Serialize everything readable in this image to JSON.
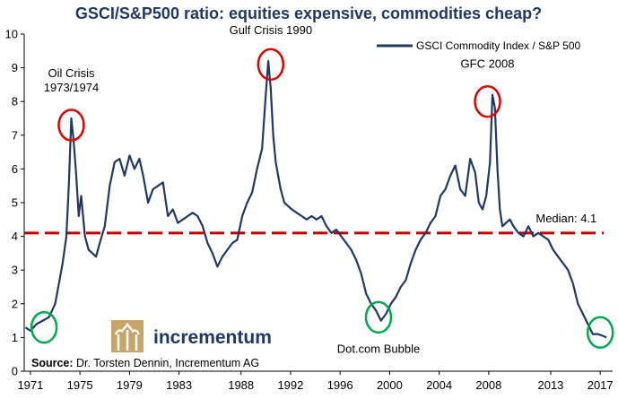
{
  "chart_data": {
    "type": "line",
    "title": "GSCI/S&P500 ratio: equities expensive, commodities cheap?",
    "xlabel": "",
    "ylabel": "",
    "xlim": [
      1970.5,
      2018.0
    ],
    "ylim": [
      0,
      10
    ],
    "y_ticks": [
      0,
      1,
      2,
      3,
      4,
      5,
      6,
      7,
      8,
      9,
      10
    ],
    "x_ticks": [
      1971,
      1975,
      1979,
      1983,
      1988,
      1992,
      1996,
      2000,
      2004,
      2008,
      2013,
      2017
    ],
    "grid": false,
    "legend_position": "top-right",
    "series": [
      {
        "name": "GSCI Commodity Index / S&P 500",
        "color": "#1f3864",
        "x": [
          1970.6,
          1971.0,
          1971.5,
          1972.0,
          1972.5,
          1973.0,
          1973.3,
          1973.6,
          1973.9,
          1974.1,
          1974.3,
          1974.5,
          1974.7,
          1974.9,
          1975.1,
          1975.4,
          1975.7,
          1976.0,
          1976.3,
          1976.6,
          1977.0,
          1977.4,
          1977.8,
          1978.2,
          1978.6,
          1979.0,
          1979.4,
          1979.8,
          1980.1,
          1980.5,
          1980.9,
          1981.3,
          1981.7,
          1982.1,
          1982.5,
          1982.9,
          1983.3,
          1983.7,
          1984.1,
          1984.5,
          1984.9,
          1985.3,
          1985.7,
          1986.1,
          1986.5,
          1986.9,
          1987.3,
          1987.7,
          1988.1,
          1988.5,
          1988.9,
          1989.3,
          1989.7,
          1990.0,
          1990.2,
          1990.4,
          1990.6,
          1990.8,
          1991.0,
          1991.2,
          1991.5,
          1991.8,
          1992.1,
          1992.5,
          1992.9,
          1993.3,
          1993.7,
          1994.1,
          1994.5,
          1994.9,
          1995.3,
          1995.7,
          1996.1,
          1996.5,
          1996.9,
          1997.3,
          1997.7,
          1998.1,
          1998.5,
          1998.9,
          1999.3,
          1999.7,
          2000.1,
          2000.5,
          2000.9,
          2001.3,
          2001.7,
          2002.1,
          2002.5,
          2002.9,
          2003.3,
          2003.7,
          2004.1,
          2004.5,
          2004.9,
          2005.3,
          2005.7,
          2006.1,
          2006.5,
          2006.9,
          2007.2,
          2007.5,
          2007.8,
          2008.1,
          2008.3,
          2008.5,
          2008.7,
          2008.9,
          2009.1,
          2009.4,
          2009.7,
          2010.0,
          2010.4,
          2010.8,
          2011.2,
          2011.6,
          2012.0,
          2012.4,
          2012.8,
          2013.2,
          2013.6,
          2014.0,
          2014.4,
          2014.8,
          2015.2,
          2015.6,
          2016.0,
          2016.4,
          2016.8,
          2017.2,
          2017.5
        ],
        "y": [
          1.3,
          1.2,
          1.4,
          1.5,
          1.6,
          2.0,
          2.6,
          3.2,
          4.0,
          5.5,
          7.5,
          6.8,
          5.8,
          4.6,
          5.2,
          4.0,
          3.6,
          3.5,
          3.4,
          3.8,
          4.3,
          5.5,
          6.2,
          6.3,
          5.8,
          6.4,
          6.0,
          6.3,
          5.8,
          5.0,
          5.4,
          5.5,
          5.6,
          4.6,
          4.8,
          4.4,
          4.5,
          4.6,
          4.7,
          4.6,
          4.3,
          3.8,
          3.5,
          3.1,
          3.4,
          3.6,
          3.8,
          3.9,
          4.6,
          5.0,
          5.3,
          6.0,
          6.6,
          8.2,
          9.2,
          8.4,
          7.0,
          6.2,
          5.8,
          5.4,
          5.0,
          4.9,
          4.8,
          4.7,
          4.6,
          4.5,
          4.6,
          4.5,
          4.6,
          4.3,
          4.1,
          4.2,
          4.0,
          3.8,
          3.6,
          3.3,
          2.9,
          2.3,
          2.0,
          1.8,
          1.5,
          1.7,
          2.0,
          2.2,
          2.5,
          2.7,
          3.2,
          3.6,
          3.9,
          4.1,
          4.4,
          4.6,
          5.2,
          5.4,
          5.8,
          6.1,
          5.4,
          5.2,
          6.3,
          5.9,
          5.0,
          4.8,
          5.2,
          6.2,
          8.2,
          7.8,
          6.0,
          4.8,
          4.3,
          4.4,
          4.5,
          4.3,
          4.1,
          4.0,
          4.3,
          4.0,
          4.1,
          4.0,
          3.9,
          3.6,
          3.4,
          3.2,
          3.0,
          2.6,
          2.0,
          1.7,
          1.4,
          1.1,
          1.1,
          1.05,
          1.0
        ],
        "line_width": 2.2
      }
    ],
    "median": {
      "value": 4.1,
      "label": "Median: 4.1",
      "color": "#c00000"
    },
    "annotations": [
      {
        "text": "Oil Crisis",
        "text2": "1973/1974",
        "x": 1974.3,
        "y": 7.5
      },
      {
        "text": "Gulf Crisis 1990",
        "x": 1990.4,
        "y": 9.2
      },
      {
        "text": "GFC 2008",
        "x": 2007.9,
        "y": 8.2
      },
      {
        "text": "Dot.com Bubble",
        "x": 1999.1,
        "y": 1.55
      }
    ],
    "circles": [
      {
        "x": 1974.3,
        "y": 7.3,
        "color": "#e00000"
      },
      {
        "x": 1990.4,
        "y": 9.1,
        "color": "#e00000"
      },
      {
        "x": 2007.9,
        "y": 8.0,
        "color": "#e00000"
      },
      {
        "x": 1972.1,
        "y": 1.3,
        "color": "#00a84e"
      },
      {
        "x": 1999.1,
        "y": 1.6,
        "color": "#00a84e"
      },
      {
        "x": 2017.0,
        "y": 1.15,
        "color": "#00a84e"
      }
    ]
  },
  "source": {
    "label": "Source:",
    "text": " Dr. Torsten Dennin, Incrementum AG"
  },
  "logo": {
    "text": "incrementum"
  }
}
